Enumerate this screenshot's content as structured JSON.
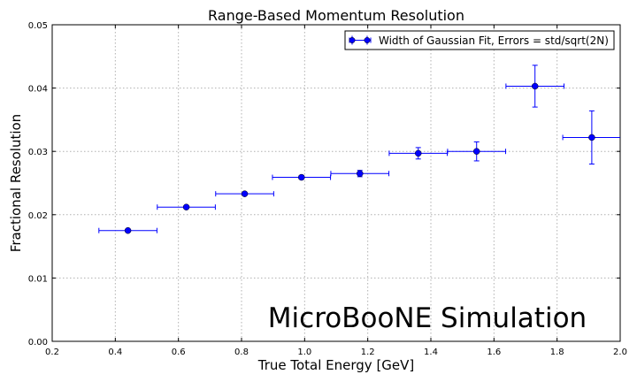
{
  "colors": {
    "series": "#0000ff",
    "grid": "#b0b0b0",
    "axis": "#000000"
  },
  "chart_data": {
    "type": "scatter",
    "title": "Range-Based Momentum Resolution",
    "xlabel": "True Total Energy [GeV]",
    "ylabel": "Fractional Resolution",
    "xlim": [
      0.2,
      2.0
    ],
    "ylim": [
      0.0,
      0.05
    ],
    "xticks": [
      "0.2",
      "0.4",
      "0.6",
      "0.8",
      "1.0",
      "1.2",
      "1.4",
      "1.6",
      "1.8",
      "2.0"
    ],
    "yticks": [
      "0.00",
      "0.01",
      "0.02",
      "0.03",
      "0.04",
      "0.05"
    ],
    "grid": true,
    "legend_position": "top-right",
    "annotation": "MicroBooNE Simulation",
    "series": [
      {
        "name": "Width of Gaussian Fit, Errors = std/sqrt(2N)",
        "marker": "circle",
        "points": [
          {
            "x": 0.44,
            "y": 0.0175,
            "xerr": 0.092,
            "yerr": 0.0002
          },
          {
            "x": 0.625,
            "y": 0.0212,
            "xerr": 0.092,
            "yerr": 0.0002
          },
          {
            "x": 0.81,
            "y": 0.0233,
            "xerr": 0.092,
            "yerr": 0.0002
          },
          {
            "x": 0.99,
            "y": 0.0259,
            "xerr": 0.092,
            "yerr": 0.0003
          },
          {
            "x": 1.175,
            "y": 0.0265,
            "xerr": 0.092,
            "yerr": 0.0005
          },
          {
            "x": 1.36,
            "y": 0.0297,
            "xerr": 0.092,
            "yerr": 0.0009
          },
          {
            "x": 1.545,
            "y": 0.03,
            "xerr": 0.092,
            "yerr": 0.0015
          },
          {
            "x": 1.73,
            "y": 0.0403,
            "xerr": 0.092,
            "yerr": 0.0033
          },
          {
            "x": 1.91,
            "y": 0.0322,
            "xerr": 0.092,
            "yerr": 0.0042
          }
        ]
      }
    ]
  }
}
